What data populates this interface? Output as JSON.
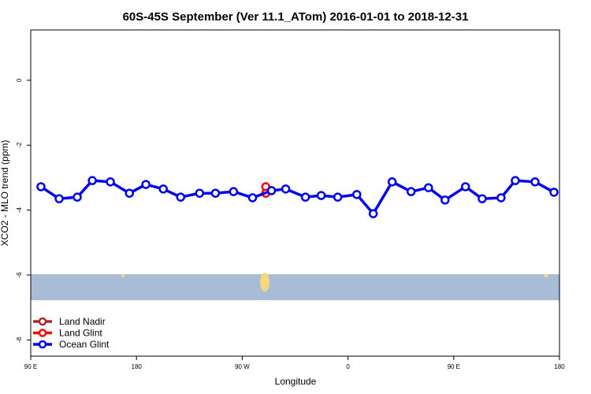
{
  "chart_data": {
    "type": "line",
    "title": "60S-45S September (Ver 11.1_ATom)   2016-01-01 to 2018-12-31",
    "x_label": "Longitude",
    "y_label": "XCO2 - MLO trend (ppm)",
    "xlim": [
      90,
      540
    ],
    "ylim": [
      -8.5,
      1.55
    ],
    "xticks": [
      {
        "value": 90,
        "label": "90 E"
      },
      180,
      {
        "value": 270,
        "label": "90 W"
      },
      {
        "value": 360,
        "label": "0"
      },
      {
        "value": 450,
        "label": "90 E"
      },
      {
        "value": 540,
        "label": "180"
      }
    ],
    "yticks": [
      0,
      -2,
      -4,
      -6,
      -8
    ],
    "legend": "bottom-left",
    "series": [
      {
        "name": "Land Nadir",
        "color": "#a52a2a",
        "x": [],
        "values": []
      },
      {
        "name": "Land Glint",
        "color": "#ff0000",
        "x": [
          290,
          290
        ],
        "values": [
          -3.28,
          -3.48
        ]
      },
      {
        "name": "Ocean Glint",
        "color": "#0000ee",
        "x": [
          98.7,
          114.2,
          129.6,
          142.4,
          157.8,
          174,
          188,
          202.8,
          217.6,
          233.7,
          247.2,
          262.6,
          278.8,
          294.9,
          307,
          323.8,
          337.2,
          351.3,
          367.5,
          381.5,
          397.6,
          413.7,
          428.5,
          442.6,
          460,
          474.2,
          490.3,
          502.4,
          519.2,
          535.3
        ],
        "values": [
          -3.28,
          -3.65,
          -3.6,
          -3.09,
          -3.13,
          -3.48,
          -3.21,
          -3.35,
          -3.6,
          -3.48,
          -3.48,
          -3.43,
          -3.62,
          -3.4,
          -3.35,
          -3.6,
          -3.55,
          -3.6,
          -3.52,
          -4.11,
          -3.13,
          -3.43,
          -3.31,
          -3.69,
          -3.28,
          -3.65,
          -3.62,
          -3.09,
          -3.13,
          -3.45
        ]
      }
    ]
  }
}
